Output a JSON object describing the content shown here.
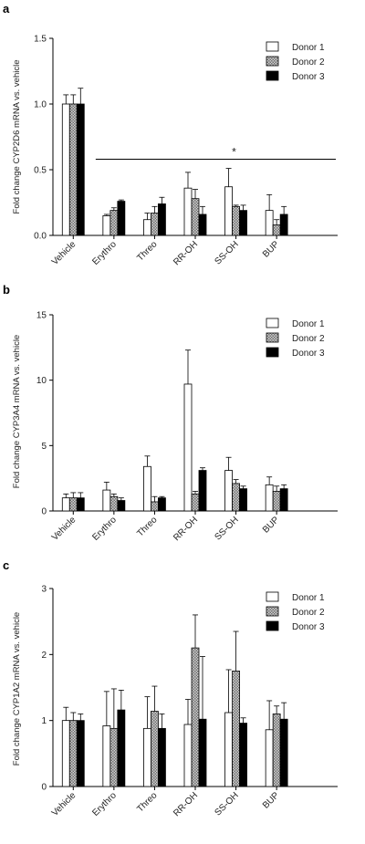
{
  "figure": {
    "panels": [
      {
        "label": "a",
        "ylabel": "Fold change CYP2D6 mRNA vs. vehicle",
        "significance_marker": "*"
      },
      {
        "label": "b",
        "ylabel": "Fold change CYP3A4 mRNA vs. vehicle"
      },
      {
        "label": "c",
        "ylabel": "Fold change CYP1A2 mRNA vs. vehicle"
      }
    ]
  },
  "colors": {
    "donor1": "#ffffff",
    "donor2": "#a6a6a6",
    "donor3": "#000000",
    "axis": "#000000"
  },
  "chart_data": [
    {
      "type": "bar",
      "title": "a",
      "xlabel": "",
      "ylabel": "Fold change CYP2D6 mRNA vs. vehicle",
      "categories": [
        "Vehicle",
        "Erythro",
        "Threo",
        "RR-OH",
        "SS-OH",
        "BUP"
      ],
      "ylim": [
        0,
        1.5
      ],
      "yticks": [
        0.0,
        0.5,
        1.0,
        1.5
      ],
      "ytick_labels": [
        "0.0",
        "0.5",
        "1.0",
        "1.5"
      ],
      "series": [
        {
          "name": "Donor 1",
          "values": [
            1.0,
            0.15,
            0.12,
            0.36,
            0.37,
            0.19
          ],
          "errors": [
            0.07,
            0.01,
            0.05,
            0.12,
            0.14,
            0.12
          ]
        },
        {
          "name": "Donor 2",
          "values": [
            1.0,
            0.19,
            0.17,
            0.28,
            0.22,
            0.08
          ],
          "errors": [
            0.07,
            0.02,
            0.05,
            0.07,
            0.01,
            0.04
          ]
        },
        {
          "name": "Donor 3",
          "values": [
            1.0,
            0.26,
            0.24,
            0.16,
            0.19,
            0.16
          ],
          "errors": [
            0.12,
            0.01,
            0.05,
            0.06,
            0.04,
            0.06
          ]
        }
      ],
      "annotations": [
        {
          "text": "*",
          "type": "significance-line",
          "span": [
            "Erythro",
            "BUP"
          ]
        }
      ],
      "legend": "top-right",
      "grid": false
    },
    {
      "type": "bar",
      "title": "b",
      "xlabel": "",
      "ylabel": "Fold change CYP3A4 mRNA vs. vehicle",
      "categories": [
        "Vehicle",
        "Erythro",
        "Threo",
        "RR-OH",
        "SS-OH",
        "BUP"
      ],
      "ylim": [
        0,
        15
      ],
      "yticks": [
        0,
        5,
        10,
        15
      ],
      "ytick_labels": [
        "0",
        "5",
        "10",
        "15"
      ],
      "series": [
        {
          "name": "Donor 1",
          "values": [
            1.0,
            1.6,
            3.4,
            9.7,
            3.1,
            2.0
          ],
          "errors": [
            0.3,
            0.6,
            0.8,
            2.6,
            1.0,
            0.6
          ]
        },
        {
          "name": "Donor 2",
          "values": [
            1.0,
            1.1,
            0.7,
            1.3,
            2.1,
            1.5
          ],
          "errors": [
            0.4,
            0.2,
            0.4,
            0.2,
            0.3,
            0.4
          ]
        },
        {
          "name": "Donor 3",
          "values": [
            1.0,
            0.8,
            1.0,
            3.1,
            1.7,
            1.7
          ],
          "errors": [
            0.4,
            0.2,
            0.1,
            0.2,
            0.2,
            0.3
          ]
        }
      ],
      "legend": "top-right",
      "grid": false
    },
    {
      "type": "bar",
      "title": "c",
      "xlabel": "",
      "ylabel": "Fold change CYP1A2 mRNA vs. vehicle",
      "categories": [
        "Vehicle",
        "Erythro",
        "Threo",
        "RR-OH",
        "SS-OH",
        "BUP"
      ],
      "ylim": [
        0,
        3
      ],
      "yticks": [
        0,
        1,
        2,
        3
      ],
      "ytick_labels": [
        "0",
        "1",
        "2",
        "3"
      ],
      "series": [
        {
          "name": "Donor 1",
          "values": [
            1.0,
            0.92,
            0.88,
            0.94,
            1.12,
            0.86
          ],
          "errors": [
            0.2,
            0.52,
            0.48,
            0.38,
            0.65,
            0.44
          ]
        },
        {
          "name": "Donor 2",
          "values": [
            1.0,
            0.88,
            1.14,
            2.1,
            1.75,
            1.1
          ],
          "errors": [
            0.12,
            0.6,
            0.38,
            0.5,
            0.6,
            0.12
          ]
        },
        {
          "name": "Donor 3",
          "values": [
            1.0,
            1.16,
            0.88,
            1.02,
            0.96,
            1.02
          ],
          "errors": [
            0.1,
            0.3,
            0.22,
            0.95,
            0.08,
            0.25
          ]
        }
      ],
      "legend": "top-right",
      "grid": false
    }
  ]
}
